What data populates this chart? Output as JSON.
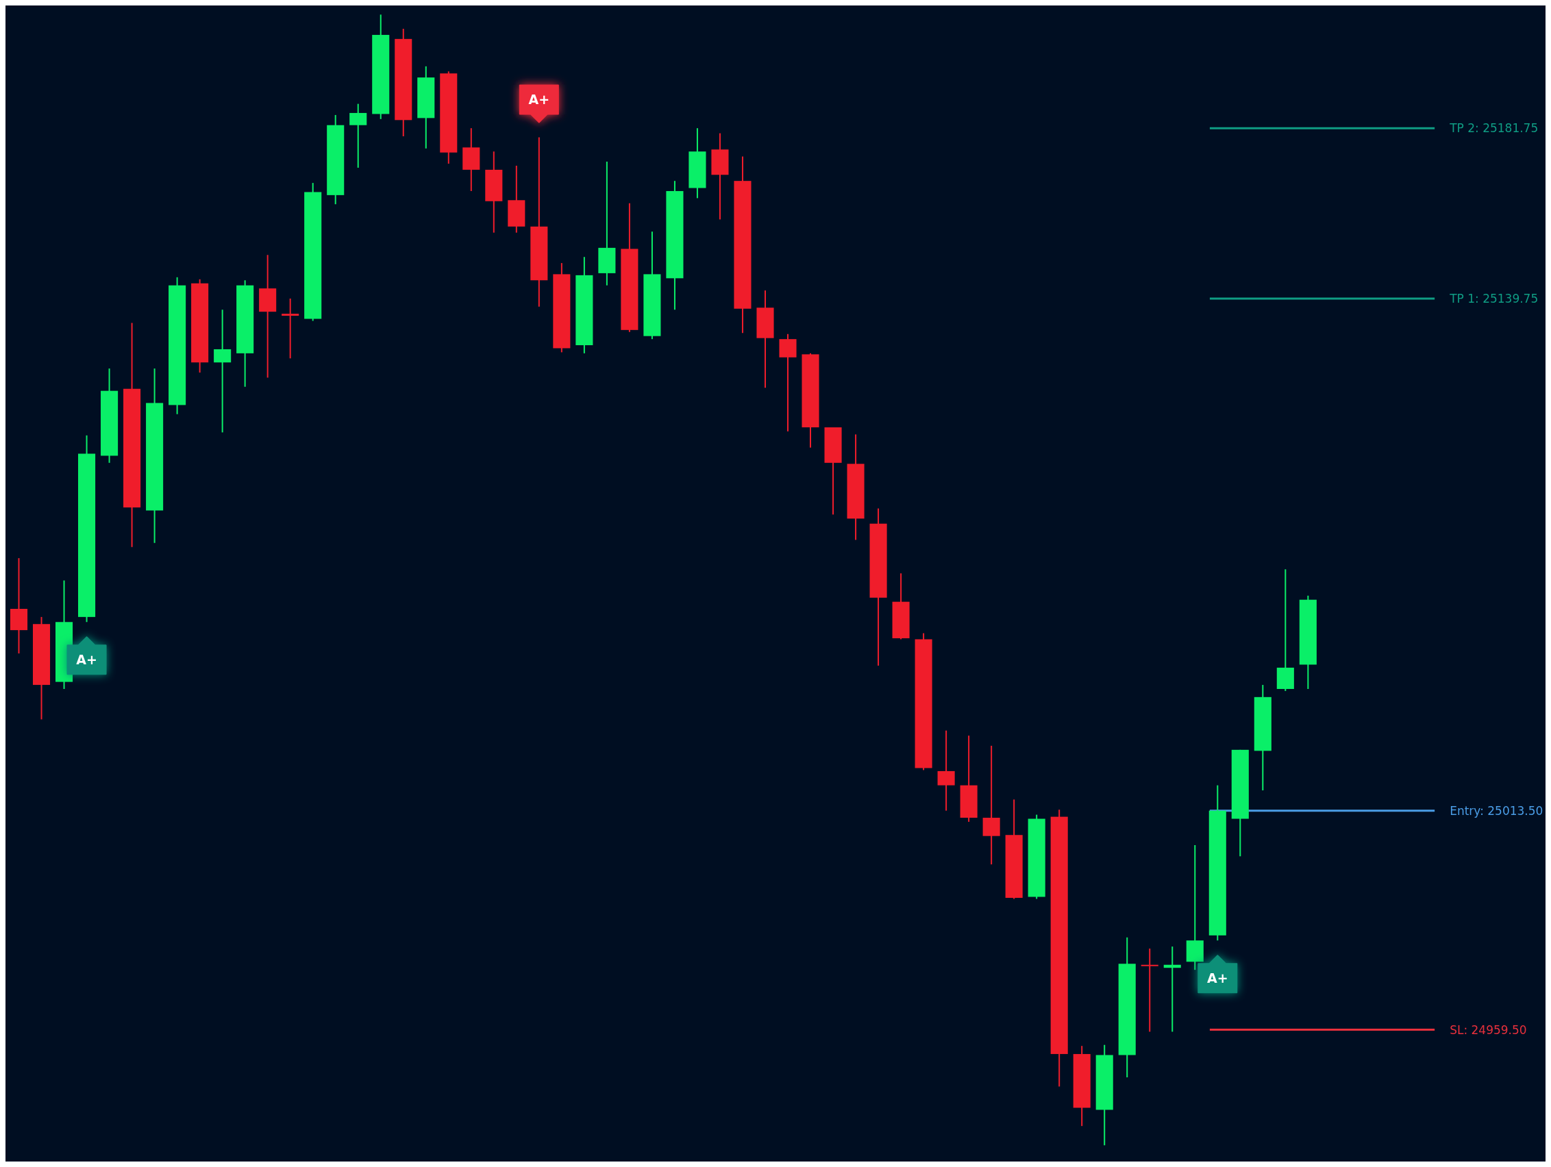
{
  "chart_data": {
    "type": "candlestick",
    "categories": [
      null,
      null,
      null,
      null,
      null,
      null,
      null,
      null,
      null,
      null,
      null,
      null,
      null,
      null,
      null,
      null,
      null,
      null,
      null,
      null,
      null,
      null,
      null,
      null,
      null,
      null,
      null,
      null,
      null,
      null,
      null,
      null,
      null,
      null,
      null,
      null,
      null,
      null,
      null,
      null,
      null,
      null,
      null,
      null,
      null,
      null,
      null,
      null,
      null,
      null,
      null,
      null,
      null,
      null,
      null,
      null,
      null,
      null
    ],
    "ohlc": [
      [
        25063.25,
        25075.75,
        25052.25,
        25058
      ],
      [
        25059.5,
        25061.25,
        25036,
        25044.5
      ],
      [
        25045.25,
        25070.25,
        25043.5,
        25060
      ],
      [
        25061.25,
        25106,
        25060,
        25101.5
      ],
      [
        25101,
        25122.5,
        25099.25,
        25117
      ],
      [
        25117.5,
        25133.75,
        25078.5,
        25088.25
      ],
      [
        25087.5,
        25122.5,
        25079.5,
        25114
      ],
      [
        25113.5,
        25145,
        25111.25,
        25143
      ],
      [
        25143.5,
        25144.5,
        25121.5,
        25124
      ],
      [
        25124,
        25137,
        25106.75,
        25127.25
      ],
      [
        25126.25,
        25144.25,
        25118,
        25143
      ],
      [
        25142.25,
        25150.5,
        25120.25,
        25136.5
      ],
      [
        25136,
        25139.75,
        25125,
        25135.5
      ],
      [
        25134.75,
        25168.25,
        25134.25,
        25166
      ],
      [
        25165.25,
        25185,
        25163,
        25182.5
      ],
      [
        25182.5,
        25187.75,
        25172,
        25185.5
      ],
      [
        25185.25,
        25209.75,
        25184,
        25204.75
      ],
      [
        25203.75,
        25206.25,
        25179.75,
        25183.75
      ],
      [
        25184.25,
        25197,
        25176.75,
        25194.25
      ],
      [
        25195.25,
        25195.75,
        25173,
        25175.75
      ],
      [
        25177,
        25181.75,
        25166.25,
        25171.5
      ],
      [
        25171.5,
        25176,
        25156,
        25163.75
      ],
      [
        25164,
        25172.5,
        25156,
        25157.5
      ],
      [
        25157.5,
        25179.5,
        25137.75,
        25144.25
      ],
      [
        25145.75,
        25148.5,
        25126.5,
        25127.5
      ],
      [
        25128.25,
        25150,
        25126.25,
        25145.5
      ],
      [
        25146,
        25173.5,
        25143,
        25152.25
      ],
      [
        25152,
        25163.25,
        25131.5,
        25132
      ],
      [
        25130.5,
        25156.25,
        25129.75,
        25145.75
      ],
      [
        25144.75,
        25168.75,
        25137,
        25166.25
      ],
      [
        25167,
        25181.75,
        25164.5,
        25176
      ],
      [
        25176.5,
        25180.5,
        25159.25,
        25170.25
      ],
      [
        25168.75,
        25174.75,
        25131.25,
        25137.25
      ],
      [
        25137.5,
        25141.75,
        25117.75,
        25130
      ],
      [
        25129.75,
        25131,
        25107,
        25125.25
      ],
      [
        25126,
        25126.25,
        25103,
        25108
      ],
      [
        25108,
        25108,
        25086.5,
        25099.25
      ],
      [
        25099,
        25106.25,
        25080.25,
        25085.5
      ],
      [
        25084.25,
        25088,
        25049.25,
        25066
      ],
      [
        25065,
        25072,
        25055.75,
        25056
      ],
      [
        25055.75,
        25057.25,
        25023.5,
        25024
      ],
      [
        25023.25,
        25033.25,
        25013.5,
        25019.75
      ],
      [
        25019.75,
        25032,
        25010.75,
        25011.75
      ],
      [
        25011.75,
        25029.5,
        25000.25,
        25007.25
      ],
      [
        25007.5,
        25016.25,
        24991.75,
        24992
      ],
      [
        24992.25,
        25012.5,
        24991.75,
        25011.5
      ],
      [
        25012,
        25013.75,
        24945.5,
        24953.5
      ],
      [
        24953.5,
        24955.5,
        24935.75,
        24940.25
      ],
      [
        24939.75,
        24955.75,
        24931,
        24953.25
      ],
      [
        24953.25,
        24982.25,
        24947.75,
        24975.75
      ],
      [
        24975.5,
        24979.5,
        24959,
        24975.25
      ],
      [
        24974.75,
        24980,
        24959,
        24975.5
      ],
      [
        24976.25,
        25005,
        24974.25,
        24981.5
      ],
      [
        24982.75,
        25019.75,
        24981.5,
        25013.5
      ],
      [
        25011.5,
        25028.5,
        25002.25,
        25028.5
      ],
      [
        25028.25,
        25044.5,
        25018.5,
        25041.5
      ],
      [
        25043.5,
        25073,
        25043,
        25048.75
      ],
      [
        25049.5,
        25066.5,
        25043.5,
        25065.5
      ]
    ],
    "colors": [
      "#f01d2b",
      "#f01d2b",
      "#0aef68",
      "#0aef68",
      "#0aef68",
      "#f01d2b",
      "#0aef68",
      "#0aef68",
      "#f01d2b",
      "#0aef68",
      "#0aef68",
      "#f01d2b",
      "#f01d2b",
      "#0aef68",
      "#0aef68",
      "#0aef68",
      "#0aef68",
      "#f01d2b",
      "#0aef68",
      "#f01d2b",
      "#f01d2b",
      "#f01d2b",
      "#f01d2b",
      "#f01d2b",
      "#f01d2b",
      "#0aef68",
      "#0aef68",
      "#f01d2b",
      "#0aef68",
      "#0aef68",
      "#0aef68",
      "#f01d2b",
      "#f01d2b",
      "#f01d2b",
      "#f01d2b",
      "#f01d2b",
      "#f01d2b",
      "#f01d2b",
      "#f01d2b",
      "#f01d2b",
      "#f01d2b",
      "#f01d2b",
      "#f01d2b",
      "#f01d2b",
      "#f01d2b",
      "#0aef68",
      "#f01d2b",
      "#f01d2b",
      "#0aef68",
      "#0aef68",
      "#f01d2b",
      "#0aef68",
      "#0aef68",
      "#0aef68",
      "#0aef68",
      "#0aef68",
      "#0aef68",
      "#0aef68"
    ],
    "ylim": [
      24927,
      25212
    ],
    "ref_lines": [
      {
        "axis": "y",
        "value": 25181.75,
        "label": "TP 2: 25181.75",
        "color": "#0f9d84"
      },
      {
        "axis": "y",
        "value": 25139.75,
        "label": "TP 1: 25139.75",
        "color": "#0f9d84"
      },
      {
        "axis": "y",
        "value": 25013.5,
        "label": "Entry: 25013.50",
        "color": "#4a9de6"
      },
      {
        "axis": "y",
        "value": 24959.5,
        "label": "SL: 24959.50",
        "color": "#e8303c"
      }
    ],
    "annotations": [
      {
        "text": "A+",
        "y": 25060
      },
      {
        "text": "A+",
        "y": 25179.5
      },
      {
        "text": "A+",
        "y": 24981.5
      }
    ]
  }
}
